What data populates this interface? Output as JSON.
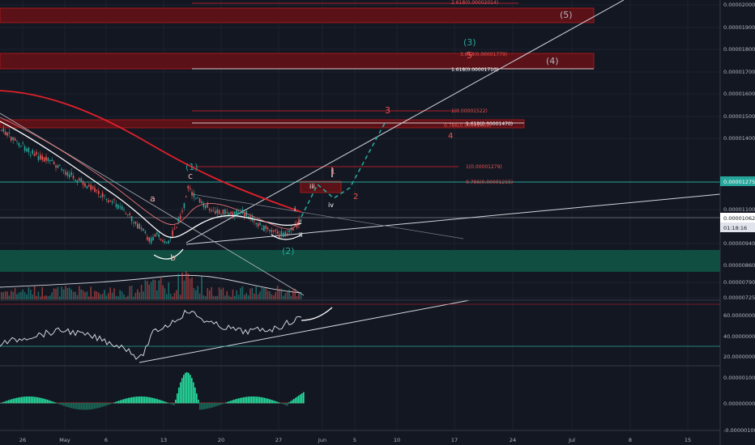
{
  "chart_data": [
    {
      "type": "candlestick",
      "title": "",
      "price_axis": {
        "ticks": [
          "0.00002000",
          "0.00001900",
          "0.00001800",
          "0.00001700",
          "0.00001600",
          "0.00001500",
          "0.00001400",
          "0.00001100",
          "0.00000940",
          "0.00000860",
          "0.00000790",
          "0.00000725"
        ],
        "current_price": "0.00001062",
        "countdown": "01:18:16",
        "level_label": "0.00001275"
      },
      "time_axis": {
        "ticks": [
          "26",
          "May",
          "6",
          "13",
          "20",
          "27",
          "Jun",
          "5",
          "10",
          "17",
          "24",
          "Jul",
          "8",
          "15"
        ]
      },
      "fib_labels": [
        {
          "text": "2.618(0.00002014)"
        },
        {
          "text": "3.618(0.00001779)"
        },
        {
          "text": "1.618(0.00001710)"
        },
        {
          "text": "1(0.00001522)"
        },
        {
          "text": "1.618(0.00001470)"
        },
        {
          "text": "0.786(0.00001465)"
        },
        {
          "text": "1(0.00001279)"
        },
        {
          "text": "0.786(0.00001215)"
        }
      ],
      "wave_labels": [
        {
          "text": "(5)",
          "color": "#b2b5be"
        },
        {
          "text": "(3)",
          "color": "#26a69a"
        },
        {
          "text": "5",
          "color": "#ef5350"
        },
        {
          "text": "(4)",
          "color": "#b2b5be"
        },
        {
          "text": "3",
          "color": "#ef5350"
        },
        {
          "text": "4",
          "color": "#ef5350"
        },
        {
          "text": "(1)",
          "color": "#26a69a"
        },
        {
          "text": "c",
          "color": "#f0b0b0"
        },
        {
          "text": "a",
          "color": "#f0b0b0"
        },
        {
          "text": "b",
          "color": "#f0b0b0"
        },
        {
          "text": "1",
          "color": "#ef5350"
        },
        {
          "text": "2",
          "color": "#ef5350"
        },
        {
          "text": "iii",
          "color": "#ffffff"
        },
        {
          "text": "iv",
          "color": "#ffffff"
        },
        {
          "text": "i",
          "color": "#ffffff"
        },
        {
          "text": "ii",
          "color": "#ffffff"
        },
        {
          "text": "(2)",
          "color": "#26a69a"
        }
      ],
      "colors": {
        "up": "#26a69a",
        "down": "#ef5350",
        "ma": "#e0202a",
        "bg": "#131722"
      }
    },
    {
      "type": "line",
      "title": "",
      "y_ticks": [
        "60.00000000",
        "40.00000000",
        "20.00000000"
      ]
    },
    {
      "type": "bar",
      "title": "",
      "y_ticks": [
        "0.00000100",
        "0.00000000",
        "-0.00000100"
      ]
    }
  ]
}
